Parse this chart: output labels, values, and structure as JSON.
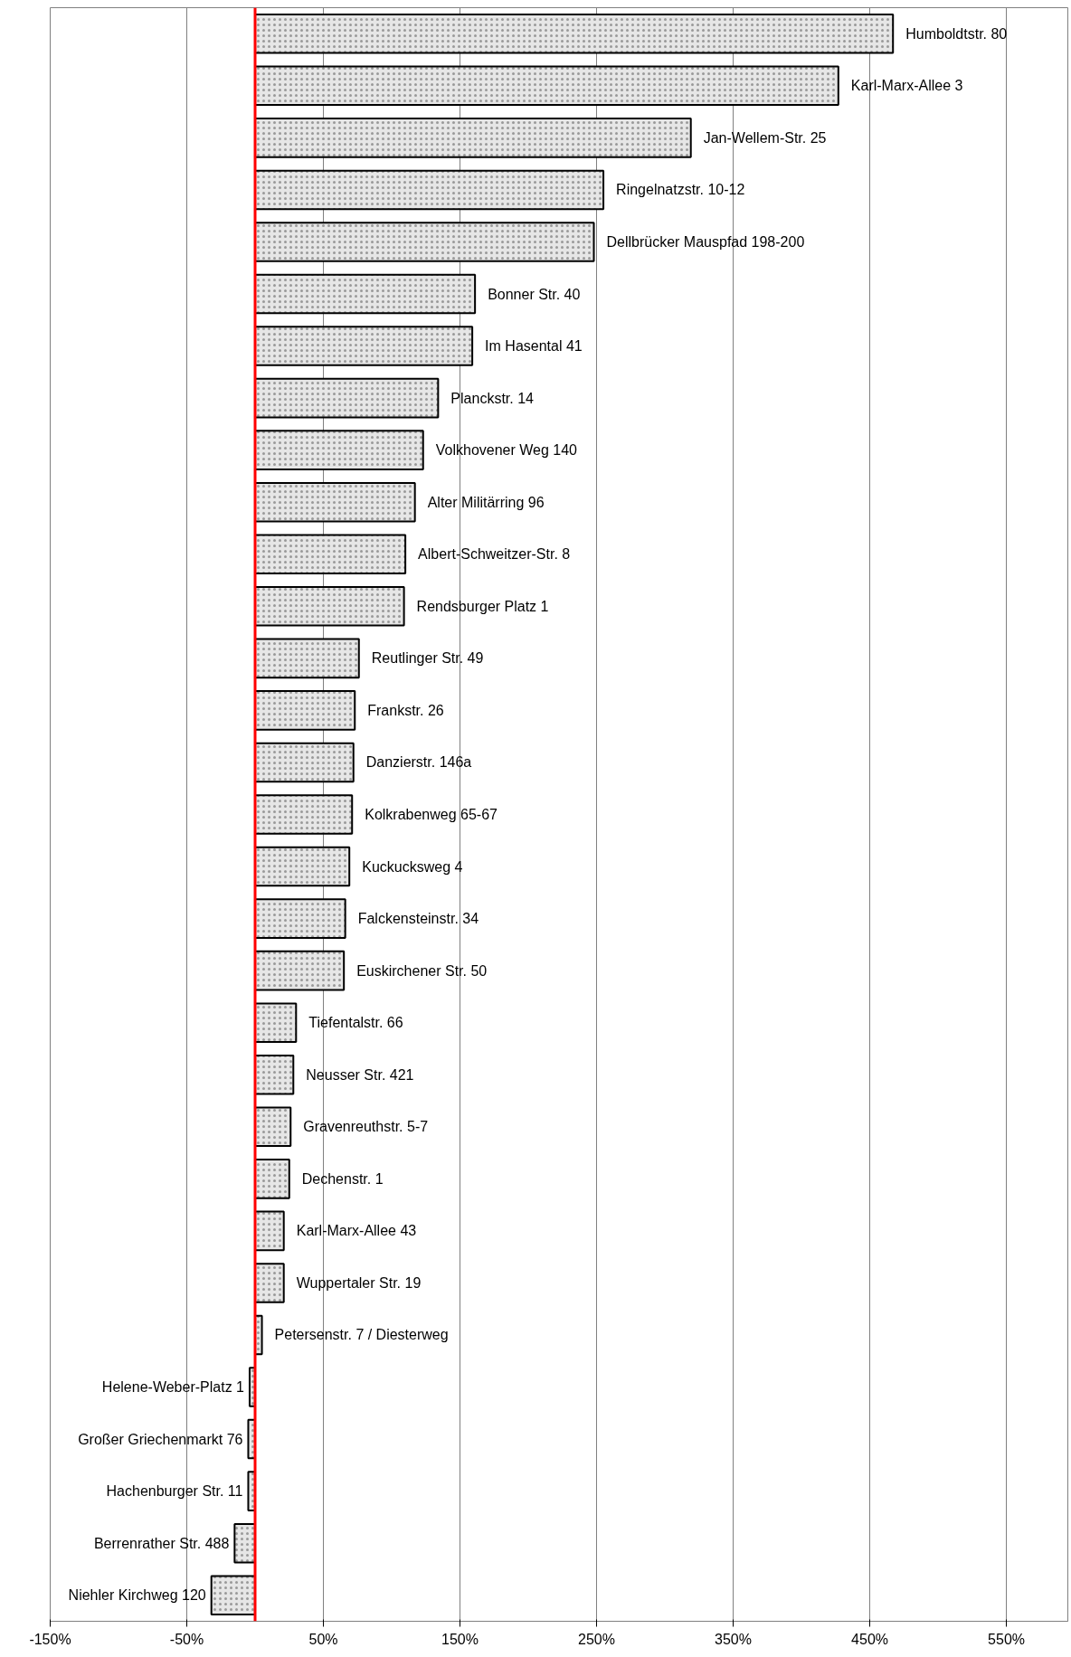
{
  "chart_data": {
    "type": "bar",
    "orientation": "horizontal",
    "categories": [
      "Humboldtstr. 80",
      "Karl-Marx-Allee 3",
      "Jan-Wellem-Str. 25",
      "Ringelnatzstr. 10-12",
      "Dellbrücker Mauspfad 198-200",
      "Bonner Str. 40",
      "Im Hasental 41",
      "Planckstr. 14",
      "Volkhovener Weg 140",
      "Alter Militärring 96",
      "Albert-Schweitzer-Str. 8",
      "Rendsburger Platz 1",
      "Reutlinger Str. 49",
      "Frankstr. 26",
      "Danzierstr. 146a",
      "Kolkrabenweg 65-67",
      "Kuckucksweg 4",
      "Falckensteinstr. 34",
      "Euskirchener Str. 50",
      "Tiefentalstr. 66",
      "Neusser Str. 421",
      "Gravenreuthstr. 5-7",
      "Dechenstr. 1",
      "Karl-Marx-Allee 43",
      "Wuppertaler Str. 19",
      "Petersenstr. 7 / Diesterweg",
      "Helene-Weber-Platz 1",
      "Großer Griechenmarkt 76",
      "Hachenburger Str. 11",
      "Berrenrather Str. 488",
      "Niehler Kirchweg 120"
    ],
    "values": [
      467,
      427,
      319,
      255,
      248,
      161,
      159,
      134,
      123,
      117,
      110,
      109,
      76,
      73,
      72,
      71,
      69,
      66,
      65,
      30,
      28,
      26,
      25,
      21,
      21,
      5,
      -4,
      -5,
      -5,
      -15,
      -32
    ],
    "color": "#e6e6e6",
    "xlim": [
      -150,
      595
    ],
    "xticks": [
      {
        "value": -150,
        "label": "-150%"
      },
      {
        "value": -50,
        "label": "-50%"
      },
      {
        "value": 50,
        "label": "50%"
      },
      {
        "value": 150,
        "label": "150%"
      },
      {
        "value": 250,
        "label": "250%"
      },
      {
        "value": 350,
        "label": "350%"
      },
      {
        "value": 450,
        "label": "450%"
      },
      {
        "value": 550,
        "label": "550%"
      }
    ],
    "grid": "x",
    "tick_labels": "x",
    "ref_lines": [
      {
        "axis": "x",
        "value": 0,
        "label": null,
        "color": "#ff0000"
      }
    ]
  }
}
